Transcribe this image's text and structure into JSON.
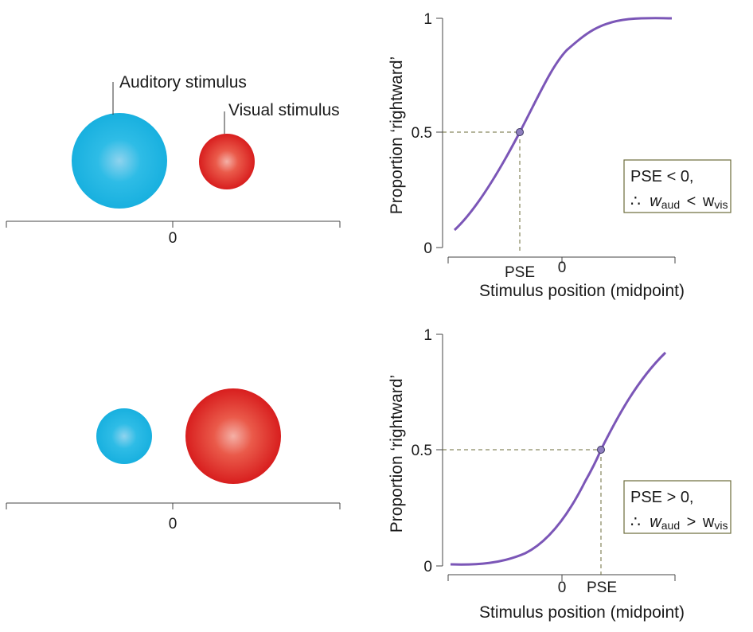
{
  "colors": {
    "auditory": "#1fb4e2",
    "visual": "#e02424",
    "curve": "#7b56b7",
    "guide": "#6b6b3a",
    "axis": "#444444",
    "box_border": "#6b6b3a"
  },
  "top_stimulus": {
    "auditory_label": "Auditory stimulus",
    "visual_label": "Visual stimulus",
    "zero_label": "0"
  },
  "bottom_stimulus": {
    "zero_label": "0"
  },
  "top_chart": {
    "ylabel": "Proportion ‘rightward’",
    "xlabel": "Stimulus position (midpoint)",
    "y_ticks": [
      "0",
      "0.5",
      "1"
    ],
    "x_tick_pse": "PSE",
    "x_tick_zero": "0",
    "box_line1": "PSE < 0,",
    "box_therefore": "∴",
    "box_w1": "w",
    "box_sub1": "aud",
    "box_rel": "<",
    "box_w2": "w",
    "box_sub2": "vis"
  },
  "bottom_chart": {
    "ylabel": "Proportion ‘rightward’",
    "xlabel": "Stimulus position (midpoint)",
    "y_ticks": [
      "0",
      "0.5",
      "1"
    ],
    "x_tick_zero": "0",
    "x_tick_pse": "PSE",
    "box_line1": "PSE > 0,",
    "box_therefore": "∴",
    "box_w1": "w",
    "box_sub1": "aud",
    "box_rel": ">",
    "box_w2": "w",
    "box_sub2": "vis"
  }
}
